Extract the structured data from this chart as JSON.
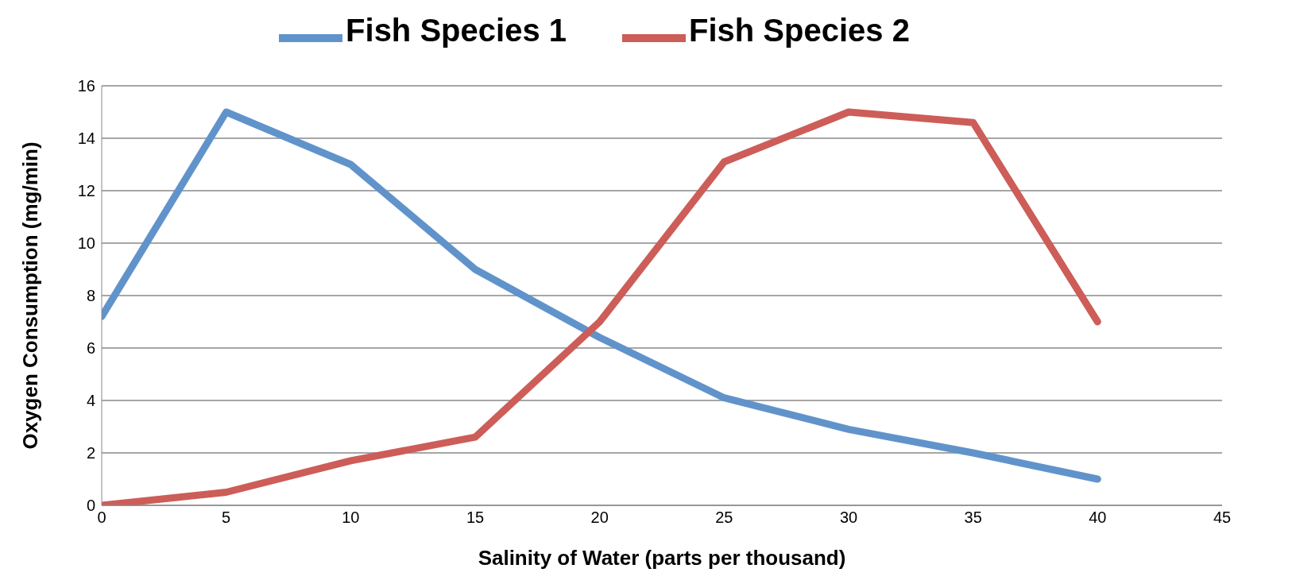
{
  "chart_data": {
    "type": "line",
    "xlabel": "Salinity of Water (parts per thousand)",
    "ylabel": "Oxygen Consumption (mg/min)",
    "x": [
      0,
      5,
      10,
      15,
      20,
      25,
      30,
      35,
      40
    ],
    "series": [
      {
        "name": "Fish Species 1",
        "color": "#6193cb",
        "values": [
          7.2,
          15,
          13,
          9,
          6.4,
          4.1,
          2.9,
          2,
          1
        ]
      },
      {
        "name": "Fish Species 2",
        "color": "#cd5d58",
        "values": [
          0,
          0.5,
          1.7,
          2.6,
          7,
          13.1,
          15,
          14.6,
          7
        ]
      }
    ],
    "xlim": [
      0,
      45
    ],
    "xticks": [
      0,
      5,
      10,
      15,
      20,
      25,
      30,
      35,
      40,
      45
    ],
    "ylim": [
      0,
      16
    ],
    "yticks": [
      0,
      2,
      4,
      6,
      8,
      10,
      12,
      14,
      16
    ],
    "grid": "y",
    "legend": "top",
    "marker": "none",
    "line_style": "solid"
  }
}
